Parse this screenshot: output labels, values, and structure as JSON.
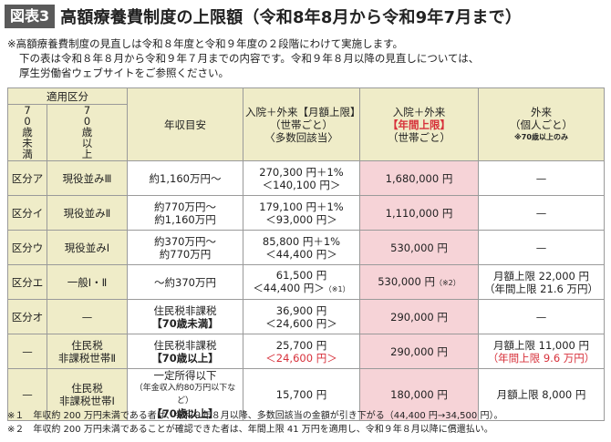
{
  "header": {
    "figure_label": "図表3",
    "title": "高額療養費制度の上限額（令和8年8月から令和9年7月まで）"
  },
  "notes": {
    "line1": "※高額療養費制度の見直しは令和８年度と令和９年度の２段階にわけて実施します。",
    "line2": "下の表は令和８年８月から令和９年７月までの内容です。令和９年８月以降の見直しについては、",
    "line3": "厚生労働省ウェブサイトをご参照ください。"
  },
  "table": {
    "header": {
      "applicable_category": "適用区分",
      "under70": "70歳未満",
      "over70": "70歳以上",
      "income": "年収目安",
      "col_inout_monthly_a": "入院＋外来【月額上限】",
      "col_inout_monthly_b": "（世帯ごと）",
      "col_inout_monthly_c": "〈多数回該当〉",
      "col_inout_annual_a": "入院＋外来",
      "col_inout_annual_red": "【年間上限】",
      "col_inout_annual_b": "（世帯ごと）",
      "col_outpatient_a": "外来",
      "col_outpatient_b": "（個人ごと）",
      "col_outpatient_note": "※70歳以上のみ"
    },
    "rows": [
      {
        "u70": "区分ア",
        "o70": "現役並みⅢ",
        "income1": "約1,160万円〜",
        "income2": "",
        "m1": "270,300 円＋1%",
        "m2": "＜140,100 円＞",
        "annual": "1,680,000 円",
        "out1": "—",
        "out2": ""
      },
      {
        "u70": "区分イ",
        "o70": "現役並みⅡ",
        "income1": "約770万円〜",
        "income2": "約1,160万円",
        "m1": "179,100 円＋1%",
        "m2": "＜93,000 円＞",
        "annual": "1,110,000 円",
        "out1": "—",
        "out2": ""
      },
      {
        "u70": "区分ウ",
        "o70": "現役並みⅠ",
        "income1": "約370万円〜",
        "income2": "約770万円",
        "m1": "85,800 円＋1%",
        "m2": "＜44,400 円＞",
        "annual": "530,000 円",
        "out1": "—",
        "out2": ""
      },
      {
        "u70": "区分エ",
        "o70": "一般Ⅰ・Ⅱ",
        "income1": "〜約370万円",
        "income2": "",
        "m1": "61,500 円",
        "m2": "＜44,400 円＞",
        "m2_note": "（※1）",
        "annual": "530,000 円",
        "annual_note": "（※2）",
        "out1": "月額上限 22,000 円",
        "out2": "（年間上限 21.6 万円）"
      },
      {
        "u70": "区分オ",
        "o70": "—",
        "income1": "住民税非課税",
        "income2": "【70歳未満】",
        "m1": "36,900 円",
        "m2": "＜24,600 円＞",
        "annual": "290,000 円",
        "out1": "—",
        "out2": ""
      },
      {
        "u70": "—",
        "o70a": "住民税",
        "o70b": "非課税世帯Ⅱ",
        "income1": "住民税非課税",
        "income2": "【70歳以上】",
        "m1": "25,700 円",
        "m2": "＜24,600 円＞",
        "annual": "290,000 円",
        "out1": "月額上限 11,000 円",
        "out2": "（年間上限 9.6 万円）"
      },
      {
        "u70": "—",
        "o70a": "住民税",
        "o70b": "非課税世帯Ⅰ",
        "income1": "一定所得以下",
        "income_small": "（年金収入約80万円以下など）",
        "income2": "【70歳以上】",
        "m1": "15,700 円",
        "m2": "",
        "annual": "180,000 円",
        "out1": "月額上限 8,000 円",
        "out2": ""
      }
    ]
  },
  "footnotes": {
    "f1": "※１　年収約 200 万円未満である者は、令和９年８月以降、多数回該当の金額が引き下がる（44,400 円→34,500 円）。",
    "f2": "※２　年収約 200 万円未満であることが確認できた者は、年間上限 41 万円を適用し、令和９年８月以降に償還払い。"
  },
  "colors": {
    "header_bg": "#efecc8",
    "highlight_pink": "#f6d3d7",
    "accent_red": "#d7303a",
    "badge_bg": "#5a5a5a"
  }
}
